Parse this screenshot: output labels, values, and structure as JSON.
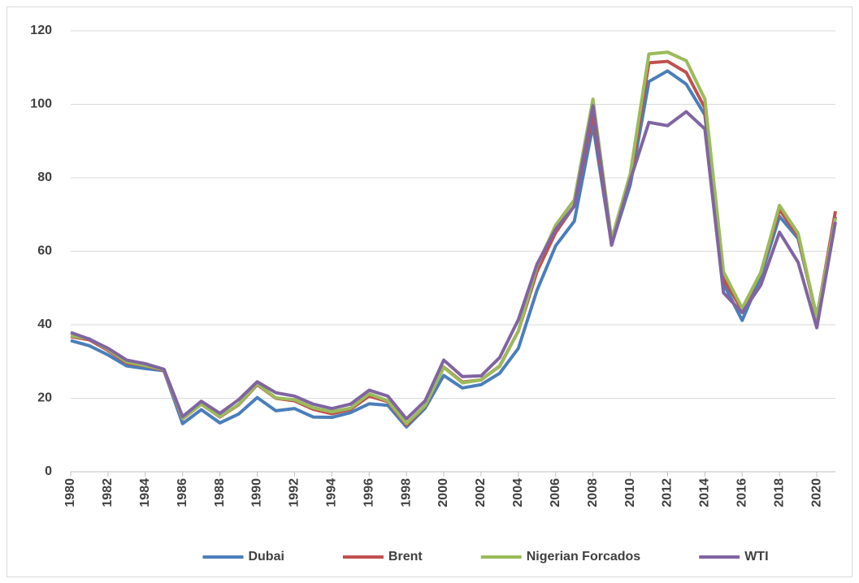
{
  "chart_data": {
    "type": "line",
    "x": [
      1980,
      1981,
      1982,
      1983,
      1984,
      1985,
      1986,
      1987,
      1988,
      1989,
      1990,
      1991,
      1992,
      1993,
      1994,
      1995,
      1996,
      1997,
      1998,
      1999,
      2000,
      2001,
      2002,
      2003,
      2004,
      2005,
      2006,
      2007,
      2008,
      2009,
      2010,
      2011,
      2012,
      2013,
      2014,
      2015,
      2016,
      2017,
      2018,
      2019,
      2020,
      2021
    ],
    "xlim": [
      1980,
      2021
    ],
    "xticks": [
      1980,
      1982,
      1984,
      1986,
      1988,
      1990,
      1992,
      1994,
      1996,
      1998,
      2000,
      2002,
      2004,
      2006,
      2008,
      2010,
      2012,
      2014,
      2016,
      2018,
      2020
    ],
    "ylim": [
      0,
      120
    ],
    "yticks": [
      0,
      20,
      40,
      60,
      80,
      100,
      120
    ],
    "grid": true,
    "legend": "bottom",
    "series": [
      {
        "name": "Dubai",
        "color": "#4a7ebb",
        "values": [
          35.7,
          34.3,
          31.8,
          28.8,
          28.1,
          27.5,
          13.1,
          16.9,
          13.3,
          15.7,
          20.2,
          16.6,
          17.2,
          14.9,
          14.8,
          16.1,
          18.5,
          18.1,
          12.2,
          17.3,
          26.2,
          22.8,
          23.7,
          26.8,
          33.6,
          49.4,
          61.5,
          68.2,
          94.3,
          61.9,
          78.1,
          106.2,
          109.1,
          105.5,
          97.1,
          51.2,
          41.2,
          53.1,
          69.5,
          63.5,
          42.3,
          69.4
        ]
      },
      {
        "name": "Brent",
        "color": "#c0504d",
        "values": [
          36.8,
          35.9,
          33.0,
          29.6,
          28.8,
          27.6,
          14.4,
          18.4,
          14.9,
          18.2,
          23.7,
          20.0,
          19.3,
          17.0,
          15.8,
          17.0,
          20.6,
          19.1,
          12.7,
          17.9,
          28.5,
          24.4,
          25.0,
          28.8,
          38.3,
          54.5,
          65.1,
          72.4,
          97.3,
          61.7,
          79.5,
          111.3,
          111.7,
          108.7,
          99.0,
          52.4,
          44.0,
          54.2,
          71.3,
          64.2,
          41.8,
          70.9
        ]
      },
      {
        "name": "Nigerian Forcados",
        "color": "#9bbb59",
        "values": [
          37.0,
          36.2,
          33.3,
          29.9,
          28.9,
          27.8,
          14.5,
          18.4,
          15.0,
          18.3,
          23.9,
          20.1,
          19.6,
          17.4,
          16.3,
          17.3,
          21.2,
          19.3,
          13.1,
          18.0,
          28.4,
          24.2,
          25.0,
          28.7,
          38.3,
          56.0,
          67.1,
          74.0,
          101.4,
          63.3,
          81.1,
          113.7,
          114.2,
          111.9,
          101.4,
          54.4,
          44.5,
          54.3,
          72.5,
          64.9,
          42.0,
          69.0
        ]
      },
      {
        "name": "WTI",
        "color": "#8064a2",
        "values": [
          37.9,
          36.1,
          33.6,
          30.4,
          29.4,
          27.9,
          15.0,
          19.2,
          15.9,
          19.6,
          24.5,
          21.5,
          20.6,
          18.4,
          17.2,
          18.4,
          22.2,
          20.6,
          14.4,
          19.3,
          30.4,
          25.9,
          26.1,
          31.1,
          41.4,
          56.5,
          66.0,
          72.3,
          99.6,
          61.7,
          79.4,
          95.1,
          94.2,
          98.0,
          93.3,
          48.7,
          43.3,
          50.8,
          65.2,
          57.0,
          39.2,
          68.0
        ]
      }
    ]
  }
}
